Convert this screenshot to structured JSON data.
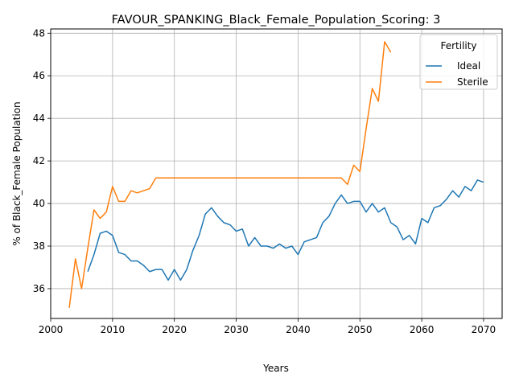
{
  "chart_data": {
    "type": "line",
    "title": "FAVOUR_SPANKING_Black_Female_Population_Scoring: 3",
    "xlabel": "Years",
    "ylabel": "% of Black_Female Population",
    "xlim": [
      2000,
      2073
    ],
    "ylim": [
      34.6,
      48.2
    ],
    "xticks": [
      2000,
      2010,
      2020,
      2030,
      2040,
      2050,
      2060,
      2070
    ],
    "yticks": [
      36,
      38,
      40,
      42,
      44,
      46,
      48
    ],
    "grid": true,
    "legend": {
      "title": "Fertility",
      "position": "top-right"
    },
    "series": [
      {
        "name": "Ideal",
        "color": "#1f77b4",
        "x": [
          2006,
          2007,
          2008,
          2009,
          2010,
          2011,
          2012,
          2013,
          2014,
          2015,
          2016,
          2017,
          2018,
          2019,
          2020,
          2021,
          2022,
          2023,
          2024,
          2025,
          2026,
          2027,
          2028,
          2029,
          2030,
          2031,
          2032,
          2033,
          2034,
          2035,
          2036,
          2037,
          2038,
          2039,
          2040,
          2041,
          2042,
          2043,
          2044,
          2045,
          2046,
          2047,
          2048,
          2049,
          2050,
          2051,
          2052,
          2053,
          2054,
          2055,
          2056,
          2057,
          2058,
          2059,
          2060,
          2061,
          2062,
          2063,
          2064,
          2065,
          2066,
          2067,
          2068,
          2069,
          2070
        ],
        "values": [
          36.8,
          37.6,
          38.6,
          38.7,
          38.5,
          37.7,
          37.6,
          37.3,
          37.3,
          37.1,
          36.8,
          36.9,
          36.9,
          36.4,
          36.9,
          36.4,
          36.9,
          37.8,
          38.5,
          39.5,
          39.8,
          39.4,
          39.1,
          39.0,
          38.7,
          38.8,
          38.0,
          38.4,
          38.0,
          38.0,
          37.9,
          38.1,
          37.9,
          38.0,
          37.6,
          38.2,
          38.3,
          38.4,
          39.1,
          39.4,
          40.0,
          40.4,
          40.0,
          40.1,
          40.1,
          39.6,
          40.0,
          39.6,
          39.8,
          39.1,
          38.9,
          38.3,
          38.5,
          38.1,
          39.3,
          39.1,
          39.8,
          39.9,
          40.2,
          40.6,
          40.3,
          40.8,
          40.6,
          41.1,
          41.0
        ]
      },
      {
        "name": "Sterile",
        "color": "#ff7f0e",
        "x": [
          2003,
          2004,
          2005,
          2006,
          2007,
          2008,
          2009,
          2010,
          2011,
          2012,
          2013,
          2014,
          2015,
          2016,
          2017,
          2018,
          2019,
          2020,
          2021,
          2022,
          2023,
          2024,
          2025,
          2026,
          2027,
          2028,
          2029,
          2030,
          2031,
          2032,
          2033,
          2034,
          2035,
          2036,
          2037,
          2038,
          2039,
          2040,
          2041,
          2042,
          2043,
          2044,
          2045,
          2046,
          2047,
          2048,
          2049,
          2050,
          2051,
          2052,
          2053,
          2054,
          2055
        ],
        "values": [
          35.1,
          37.4,
          36.0,
          37.9,
          39.7,
          39.3,
          39.6,
          40.8,
          40.1,
          40.1,
          40.6,
          40.5,
          40.6,
          40.7,
          41.2,
          41.2,
          41.2,
          41.2,
          41.2,
          41.2,
          41.2,
          41.2,
          41.2,
          41.2,
          41.2,
          41.2,
          41.2,
          41.2,
          41.2,
          41.2,
          41.2,
          41.2,
          41.2,
          41.2,
          41.2,
          41.2,
          41.2,
          41.2,
          41.2,
          41.2,
          41.2,
          41.2,
          41.2,
          41.2,
          41.2,
          40.9,
          41.8,
          41.5,
          43.5,
          45.4,
          44.8,
          47.6,
          47.1
        ]
      }
    ]
  }
}
